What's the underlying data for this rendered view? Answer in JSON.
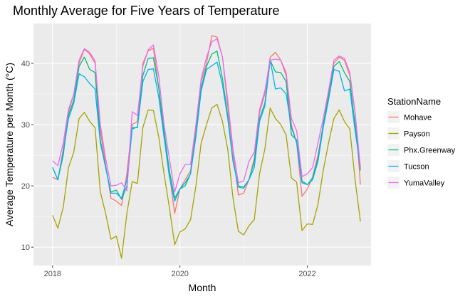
{
  "chart_data": {
    "type": "line",
    "title": "Monthly Average for Five Years of Temperature",
    "xlabel": "Month",
    "ylabel": "Average Temperature per Month (°C)",
    "legend_title": "StationName",
    "legend_position": "right",
    "grid": true,
    "xlim": [
      2017.7,
      2023.0
    ],
    "ylim": [
      7.0,
      46.5
    ],
    "x_ticks": [
      2018,
      2020,
      2022
    ],
    "x_tick_labels": [
      "2018",
      "2020",
      "2022"
    ],
    "y_ticks": [
      10,
      20,
      30,
      40
    ],
    "y_tick_labels": [
      "10",
      "20",
      "30",
      "40"
    ],
    "x": [
      2018.0,
      2018.083,
      2018.167,
      2018.25,
      2018.333,
      2018.417,
      2018.5,
      2018.583,
      2018.667,
      2018.75,
      2018.833,
      2018.917,
      2019.0,
      2019.083,
      2019.167,
      2019.25,
      2019.333,
      2019.417,
      2019.5,
      2019.583,
      2019.667,
      2019.75,
      2019.833,
      2019.917,
      2020.0,
      2020.083,
      2020.167,
      2020.25,
      2020.333,
      2020.417,
      2020.5,
      2020.583,
      2020.667,
      2020.75,
      2020.833,
      2020.917,
      2021.0,
      2021.083,
      2021.167,
      2021.25,
      2021.333,
      2021.417,
      2021.5,
      2021.583,
      2021.667,
      2021.75,
      2021.833,
      2021.917,
      2022.0,
      2022.083,
      2022.167,
      2022.25,
      2022.333,
      2022.417,
      2022.5,
      2022.583,
      2022.667,
      2022.75,
      2022.833
    ],
    "series": [
      {
        "name": "Mohave",
        "color": "#F8766D",
        "values": [
          21.4,
          21.0,
          26.0,
          32.0,
          35.0,
          40.0,
          42.3,
          41.5,
          40.0,
          29.0,
          23.5,
          18.0,
          17.5,
          16.8,
          22.0,
          30.0,
          30.5,
          40.0,
          42.0,
          42.5,
          36.0,
          28.0,
          22.0,
          15.5,
          19.5,
          21.0,
          22.5,
          29.0,
          37.0,
          40.0,
          44.5,
          44.3,
          41.0,
          33.0,
          25.5,
          18.5,
          18.8,
          21.0,
          24.5,
          32.0,
          35.0,
          41.0,
          41.8,
          40.5,
          38.0,
          30.0,
          27.0,
          18.3,
          19.5,
          21.5,
          25.0,
          30.0,
          35.0,
          40.0,
          41.0,
          40.5,
          38.0,
          32.0,
          20.2
        ]
      },
      {
        "name": "Payson",
        "color": "#A3A500",
        "values": [
          15.2,
          13.1,
          16.5,
          23.0,
          25.5,
          31.0,
          32.0,
          30.5,
          29.5,
          19.0,
          15.5,
          11.3,
          11.8,
          8.2,
          15.5,
          20.7,
          20.4,
          29.5,
          32.4,
          32.3,
          28.0,
          22.0,
          16.5,
          10.4,
          12.5,
          13.0,
          14.5,
          20.0,
          27.0,
          30.0,
          32.7,
          33.3,
          30.5,
          26.0,
          18.0,
          12.6,
          12.0,
          13.5,
          14.5,
          22.0,
          26.0,
          32.7,
          31.0,
          30.0,
          28.3,
          21.3,
          20.6,
          12.7,
          13.8,
          13.7,
          17.0,
          22.5,
          27.0,
          31.0,
          32.4,
          30.5,
          29.3,
          21.0,
          14.2
        ]
      },
      {
        "name": "Phx.Greenway",
        "color": "#00BF7D",
        "values": [
          23.0,
          21.0,
          25.0,
          31.5,
          34.0,
          39.5,
          41.0,
          39.0,
          38.5,
          27.5,
          23.0,
          19.0,
          19.3,
          17.8,
          20.0,
          29.5,
          29.5,
          38.0,
          40.8,
          40.9,
          36.0,
          29.0,
          22.5,
          18.0,
          19.5,
          20.0,
          22.0,
          28.5,
          36.0,
          39.5,
          41.5,
          42.0,
          37.5,
          31.5,
          24.0,
          20.0,
          19.8,
          21.0,
          24.0,
          31.0,
          33.5,
          40.5,
          38.6,
          38.5,
          37.0,
          28.3,
          27.5,
          20.8,
          20.2,
          21.3,
          24.5,
          30.0,
          34.5,
          39.5,
          40.3,
          38.5,
          37.0,
          30.0,
          22.5
        ]
      },
      {
        "name": "Tucson",
        "color": "#00B0F6",
        "values": [
          23.0,
          21.0,
          25.5,
          31.0,
          33.5,
          38.3,
          37.8,
          36.7,
          35.8,
          27.0,
          23.0,
          18.8,
          18.8,
          18.0,
          21.0,
          29.3,
          29.6,
          37.0,
          39.0,
          39.1,
          34.5,
          28.0,
          21.5,
          17.5,
          19.5,
          20.5,
          22.0,
          28.0,
          35.5,
          39.0,
          39.6,
          40.2,
          36.5,
          31.0,
          24.0,
          19.8,
          19.6,
          21.0,
          23.0,
          30.5,
          33.0,
          40.6,
          35.8,
          36.0,
          35.0,
          29.5,
          27.0,
          20.5,
          20.2,
          21.0,
          24.0,
          29.5,
          34.0,
          39.0,
          38.7,
          35.5,
          35.8,
          29.0,
          23.0
        ]
      },
      {
        "name": "YumaValley",
        "color": "#E76BF3",
        "values": [
          24.1,
          23.3,
          27.0,
          32.5,
          35.0,
          40.5,
          42.4,
          41.8,
          40.4,
          30.0,
          24.5,
          20.0,
          20.1,
          20.5,
          19.2,
          32.1,
          31.5,
          39.5,
          42.2,
          43.0,
          38.0,
          30.0,
          24.5,
          19.0,
          22.0,
          23.5,
          23.5,
          30.0,
          37.5,
          41.0,
          43.5,
          44.0,
          41.0,
          34.0,
          26.0,
          20.5,
          20.8,
          24.0,
          25.5,
          32.5,
          35.5,
          40.5,
          40.7,
          40.5,
          38.5,
          31.0,
          29.0,
          21.5,
          22.0,
          23.0,
          27.0,
          31.0,
          35.5,
          40.5,
          41.2,
          40.8,
          38.5,
          32.0,
          23.0
        ]
      }
    ]
  }
}
